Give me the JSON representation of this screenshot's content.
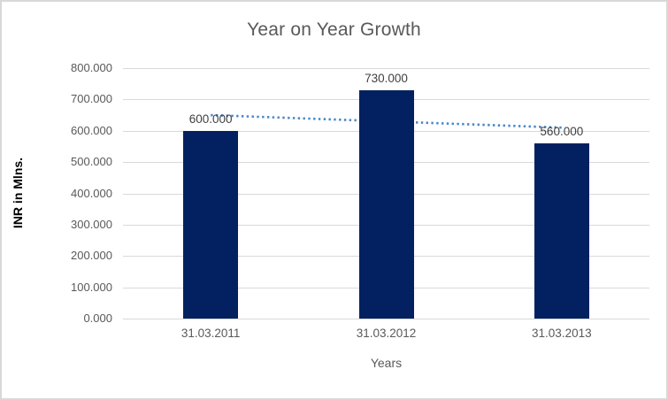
{
  "chart_data": {
    "type": "bar",
    "title": "Year on Year Growth",
    "xlabel": "Years",
    "ylabel": "INR in Mlns.",
    "categories": [
      "31.03.2011",
      "31.03.2012",
      "31.03.2013"
    ],
    "values": [
      600,
      730,
      560
    ],
    "data_labels": [
      "600.000",
      "730.000",
      "560.000"
    ],
    "ylim": [
      0,
      800
    ],
    "ytick_step": 100,
    "ytick_labels": [
      "0.000",
      "100.000",
      "200.000",
      "300.000",
      "400.000",
      "500.000",
      "600.000",
      "700.000",
      "800.000"
    ],
    "grid": true,
    "legend": "none",
    "trendline": {
      "type": "linear",
      "style": "dotted",
      "start_value": 650,
      "end_value": 610
    },
    "colors": {
      "bar": "#032160",
      "trendline": "#4a86c8",
      "gridline": "#d9d9d9",
      "title": "#595959",
      "tick_label": "#595959",
      "data_label": "#404040",
      "frame_border": "#d8d8d8"
    }
  }
}
